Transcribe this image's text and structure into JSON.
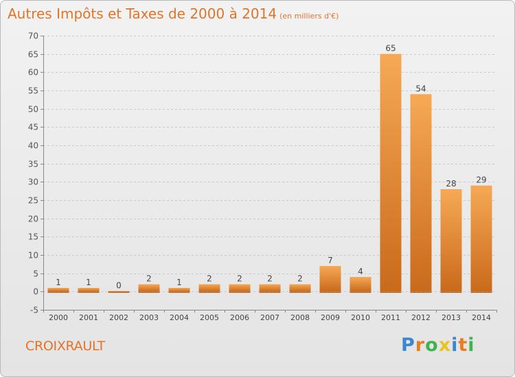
{
  "title": "Autres Impôts et Taxes de 2000 à 2014",
  "subtitle": "(en milliers d'€)",
  "commune": "CROIXRAULT",
  "logo": {
    "letters": [
      "P",
      "r",
      "o",
      "x",
      "i",
      "t",
      "i"
    ],
    "colors": [
      "#3a86d0",
      "#e67e22",
      "#3fb34f",
      "#e8c324",
      "#3a86d0",
      "#e67e22",
      "#3fb34f"
    ]
  },
  "colors": {
    "bar": "#f19b49",
    "bar_dark": "#c86a1c",
    "text": "#e0752a"
  },
  "chart_data": {
    "type": "bar",
    "categories": [
      "2000",
      "2001",
      "2002",
      "2003",
      "2004",
      "2005",
      "2006",
      "2007",
      "2008",
      "2009",
      "2010",
      "2011",
      "2012",
      "2013",
      "2014"
    ],
    "values": [
      1,
      1,
      0,
      2,
      1,
      2,
      2,
      2,
      2,
      7,
      4,
      65,
      54,
      28,
      29
    ],
    "data_labels": [
      "1",
      "1",
      "0",
      "2",
      "1",
      "2",
      "2",
      "2",
      "2",
      "7",
      "4",
      "65",
      "54",
      "28",
      "29"
    ],
    "y_ticks": [
      "-5",
      "0",
      "5",
      "10",
      "15",
      "20",
      "25",
      "30",
      "35",
      "40",
      "45",
      "50",
      "55",
      "60",
      "65",
      "70"
    ],
    "ylim": [
      -5,
      70
    ],
    "grid": true
  }
}
